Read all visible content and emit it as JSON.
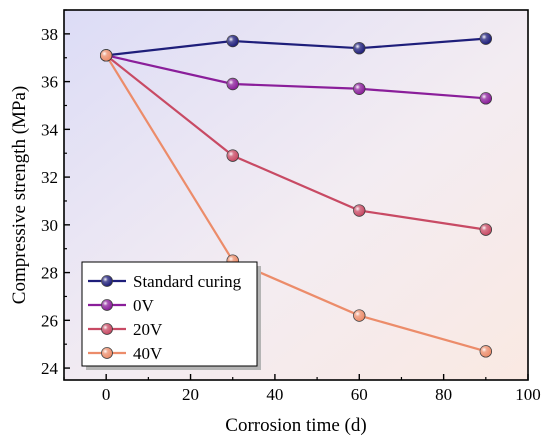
{
  "chart_data": {
    "type": "line",
    "title": "",
    "xlabel": "Corrosion time (d)",
    "ylabel": "Compressive strength (MPa)",
    "xlim": [
      -10,
      100
    ],
    "ylim": [
      23.5,
      39
    ],
    "xticks": [
      0,
      20,
      40,
      60,
      80,
      100
    ],
    "yticks": [
      24,
      26,
      28,
      30,
      32,
      34,
      36,
      38
    ],
    "x": [
      0,
      30,
      60,
      90
    ],
    "grid": false,
    "legend_position": "bottom-left",
    "background": "gradient blue-violet to peach",
    "series": [
      {
        "name": "Standard curing",
        "color": "#1e1e7a",
        "values": [
          37.1,
          37.7,
          37.4,
          37.8
        ]
      },
      {
        "name": "0V",
        "color": "#8a1e9a",
        "values": [
          37.1,
          35.9,
          35.7,
          35.3
        ]
      },
      {
        "name": "20V",
        "color": "#c84a64",
        "values": [
          37.1,
          32.9,
          30.6,
          29.8
        ]
      },
      {
        "name": "40V",
        "color": "#ec8c6a",
        "values": [
          37.1,
          28.5,
          26.2,
          24.7
        ]
      }
    ]
  }
}
